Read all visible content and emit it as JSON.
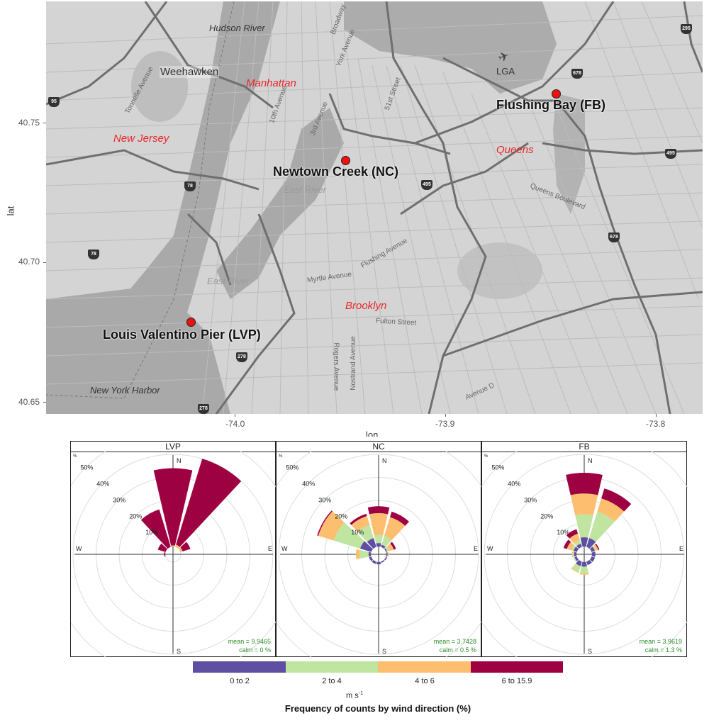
{
  "map": {
    "x_axis": {
      "title": "lon",
      "ticks": [
        "-74.0",
        "-73.9",
        "-73.8"
      ]
    },
    "y_axis": {
      "title": "lat",
      "ticks": [
        "40.75",
        "40.70",
        "40.65"
      ]
    },
    "regions": [
      "Manhattan",
      "New Jersey",
      "Queens",
      "Brooklyn"
    ],
    "water_labels": [
      "Hudson River",
      "East River",
      "East River",
      "New York Harbor"
    ],
    "towns": [
      "Weehawken",
      "LGA"
    ],
    "streets": [
      "Broadway",
      "3rd Avenue",
      "York Avenue",
      "51st Street",
      "10th Avenue",
      "Tonnelle Avenue",
      "Myrtle Avenue",
      "Flushing Avenue",
      "Fulton Street",
      "Queens Boulevard",
      "Rogers Avenue",
      "Nostrand Avenue",
      "Avenue D"
    ],
    "highway_shields": [
      "95",
      "78",
      "78",
      "495",
      "495",
      "678",
      "678",
      "295",
      "278",
      "278"
    ],
    "sites": [
      {
        "label": "Flushing Bay (FB)",
        "code": "FB",
        "lon": -73.85,
        "lat": 40.761
      },
      {
        "label": "Newtown Creek (NC)",
        "code": "NC",
        "lon": -73.945,
        "lat": 40.737
      },
      {
        "label": "Louis Valentino Pier (LVP)",
        "code": "LVP",
        "lon": -74.018,
        "lat": 40.679
      }
    ],
    "marker_color": "#ee1111"
  },
  "chart_data": [
    {
      "type": "map_scatter",
      "title": "",
      "xlabel": "lon",
      "ylabel": "lat",
      "xlim": [
        -74.075,
        -73.765
      ],
      "ylim": [
        40.645,
        40.795
      ],
      "x_ticks": [
        -74.0,
        -73.9,
        -73.8
      ],
      "y_ticks": [
        40.65,
        40.7,
        40.75
      ],
      "points": [
        {
          "name": "Flushing Bay (FB)",
          "x": -73.85,
          "y": 40.761
        },
        {
          "name": "Newtown Creek (NC)",
          "x": -73.945,
          "y": 40.737
        },
        {
          "name": "Louis Valentino Pier (LVP)",
          "x": -74.018,
          "y": 40.679
        }
      ]
    },
    {
      "type": "wind_rose",
      "title": "Frequency of counts by wind direction (%)",
      "units": "m s-1",
      "radial_ticks": [
        "10%",
        "20%",
        "30%",
        "40%",
        "50%"
      ],
      "radial_max": 50,
      "directions_deg": [
        0,
        30,
        60,
        90,
        120,
        150,
        180,
        210,
        240,
        270,
        300,
        330
      ],
      "compass_labels": [
        "N",
        "E",
        "S",
        "W"
      ],
      "bins": [
        {
          "label": "0 to 2",
          "color": "#5e4fa2"
        },
        {
          "label": "2 to 4",
          "color": "#bfe5a0"
        },
        {
          "label": "4 to 6",
          "color": "#fdbf6f"
        },
        {
          "label": "6 to 15.9",
          "color": "#9e0142"
        }
      ],
      "panels": [
        {
          "name": "LVP",
          "mean": "mean = 9.9465",
          "calm": "calm = 0 %",
          "sectors": [
            {
              "dir": 0,
              "bins": [
                0,
                0,
                0.5,
                33.5
              ]
            },
            {
              "dir": 30,
              "bins": [
                0,
                0,
                1,
                39
              ]
            },
            {
              "dir": 60,
              "bins": [
                0,
                0,
                1,
                3.5
              ]
            },
            {
              "dir": 90,
              "bins": [
                0,
                0,
                0,
                0
              ]
            },
            {
              "dir": 120,
              "bins": [
                0,
                0,
                0,
                0
              ]
            },
            {
              "dir": 150,
              "bins": [
                0,
                0,
                0,
                0
              ]
            },
            {
              "dir": 180,
              "bins": [
                0,
                0,
                0,
                0
              ]
            },
            {
              "dir": 210,
              "bins": [
                0,
                0,
                0,
                0
              ]
            },
            {
              "dir": 240,
              "bins": [
                0,
                0,
                0,
                0
              ]
            },
            {
              "dir": 270,
              "bins": [
                0,
                0,
                0,
                0.5
              ]
            },
            {
              "dir": 300,
              "bins": [
                0,
                0,
                0,
                3.5
              ]
            },
            {
              "dir": 330,
              "bins": [
                0,
                0,
                0,
                17
              ]
            }
          ]
        },
        {
          "name": "NC",
          "mean": "mean = 3.7428",
          "calm": "calm = 0.5 %",
          "sectors": [
            {
              "dir": 0,
              "bins": [
                1.5,
                3.5,
                9.5,
                3
              ]
            },
            {
              "dir": 30,
              "bins": [
                1,
                4,
                8.5,
                2.5
              ]
            },
            {
              "dir": 60,
              "bins": [
                0.5,
                1,
                2,
                1
              ]
            },
            {
              "dir": 90,
              "bins": [
                0.5,
                0,
                0.5,
                0
              ]
            },
            {
              "dir": 120,
              "bins": [
                0.5,
                0,
                0,
                0
              ]
            },
            {
              "dir": 150,
              "bins": [
                0.5,
                0,
                0,
                0
              ]
            },
            {
              "dir": 180,
              "bins": [
                1,
                0,
                0,
                0
              ]
            },
            {
              "dir": 210,
              "bins": [
                1,
                0,
                0,
                0
              ]
            },
            {
              "dir": 240,
              "bins": [
                1,
                0,
                0,
                0
              ]
            },
            {
              "dir": 270,
              "bins": [
                1,
                4,
                1.5,
                0
              ]
            },
            {
              "dir": 300,
              "bins": [
                5,
                12,
                7,
                0.5
              ]
            },
            {
              "dir": 330,
              "bins": [
                4,
                6,
                4,
                1
              ]
            }
          ]
        },
        {
          "name": "FB",
          "mean": "mean = 3.9619",
          "calm": "calm = 1.3 %",
          "sectors": [
            {
              "dir": 0,
              "bins": [
                4,
                10,
                9,
                9
              ]
            },
            {
              "dir": 30,
              "bins": [
                4,
                12,
                6,
                4.5
              ]
            },
            {
              "dir": 60,
              "bins": [
                1.5,
                0.5,
                1,
                0.5
              ]
            },
            {
              "dir": 90,
              "bins": [
                1.5,
                0,
                0,
                0
              ]
            },
            {
              "dir": 120,
              "bins": [
                1.5,
                0,
                0,
                0
              ]
            },
            {
              "dir": 150,
              "bins": [
                1.5,
                0,
                0,
                0
              ]
            },
            {
              "dir": 180,
              "bins": [
                2,
                3,
                0.5,
                0
              ]
            },
            {
              "dir": 210,
              "bins": [
                2,
                2.5,
                0.5,
                0
              ]
            },
            {
              "dir": 240,
              "bins": [
                1,
                0.5,
                0,
                0
              ]
            },
            {
              "dir": 270,
              "bins": [
                1,
                0.5,
                0.5,
                0
              ]
            },
            {
              "dir": 300,
              "bins": [
                1.5,
                1,
                2,
                1.5
              ]
            },
            {
              "dir": 330,
              "bins": [
                1.5,
                1.5,
                3,
                2
              ]
            }
          ]
        }
      ]
    }
  ],
  "legend": {
    "labels": [
      "0 to 2",
      "2 to 4",
      "4 to 6",
      "6 to 15.9"
    ],
    "colors": [
      "#5e4fa2",
      "#bfe5a0",
      "#fdbf6f",
      "#9e0142"
    ],
    "units_base": "m s",
    "units_exp": "-1",
    "caption": "Frequency of counts by wind direction (%)"
  }
}
